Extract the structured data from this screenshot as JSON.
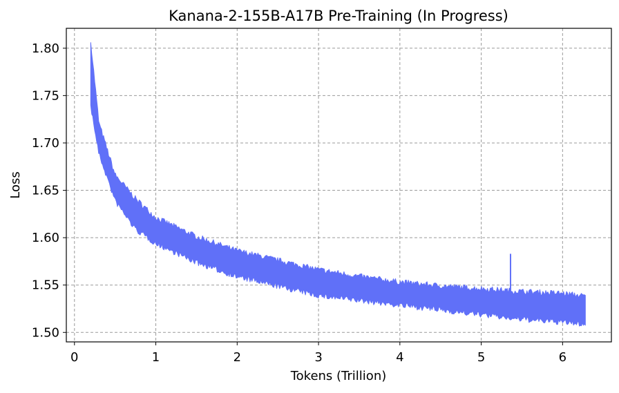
{
  "chart_data": {
    "type": "line",
    "title": "Kanana-2-155B-A17B Pre-Training (In Progress)",
    "xlabel": "Tokens (Trillion)",
    "ylabel": "Loss",
    "xlim": [
      -0.1,
      6.6
    ],
    "ylim": [
      1.49,
      1.821
    ],
    "xticks": [
      0,
      1,
      2,
      3,
      4,
      5,
      6
    ],
    "xtick_labels": [
      "0",
      "1",
      "2",
      "3",
      "4",
      "5",
      "6"
    ],
    "yticks": [
      1.5,
      1.55,
      1.6,
      1.65,
      1.7,
      1.75,
      1.8
    ],
    "ytick_labels": [
      "1.50",
      "1.55",
      "1.60",
      "1.65",
      "1.70",
      "1.75",
      "1.80"
    ],
    "grid": true,
    "color": "#6070f8",
    "series": [
      {
        "x": [
          0.2,
          0.3,
          0.5,
          0.75,
          1.0,
          1.5,
          2.0,
          2.5,
          3.0,
          3.5,
          4.0,
          4.5,
          5.0,
          5.5,
          6.0,
          6.28
        ],
        "upper": [
          1.806,
          1.72,
          1.665,
          1.64,
          1.62,
          1.6,
          1.585,
          1.575,
          1.565,
          1.558,
          1.552,
          1.548,
          1.545,
          1.542,
          1.54,
          1.537
        ],
        "lower": [
          1.74,
          1.69,
          1.64,
          1.61,
          1.595,
          1.575,
          1.56,
          1.55,
          1.54,
          1.535,
          1.53,
          1.525,
          1.52,
          1.515,
          1.512,
          1.51
        ]
      }
    ],
    "annotations": [
      {
        "type": "spike",
        "x": 5.36,
        "y": 1.583
      }
    ]
  }
}
